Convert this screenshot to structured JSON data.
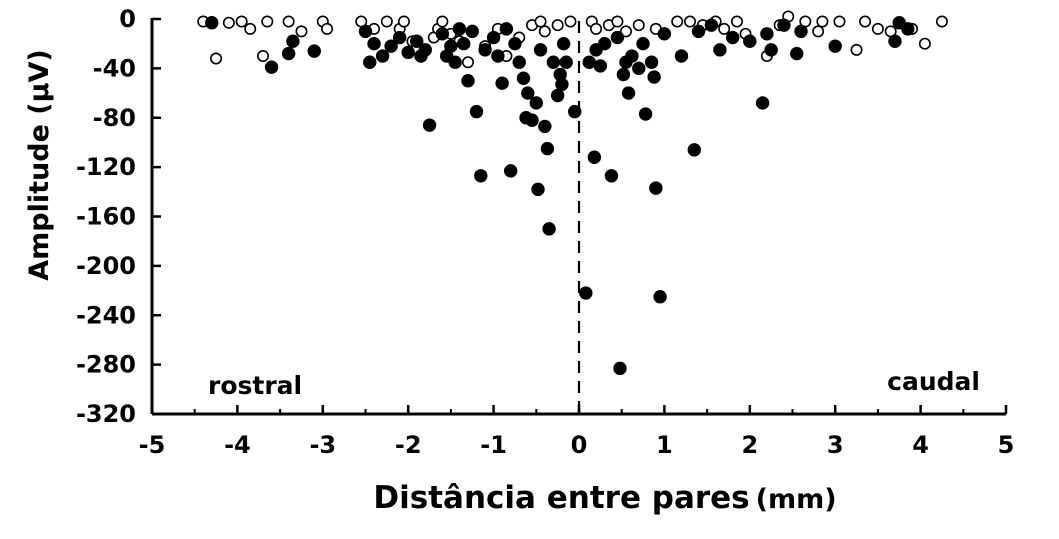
{
  "chart_data": {
    "type": "scatter",
    "xlabel": "Distância entre pares",
    "xlabel_unit": "(mm)",
    "ylabel": "Amplitude (µV)",
    "xlim": [
      -5,
      5
    ],
    "ylim": [
      -320,
      0
    ],
    "x_ticks": [
      "-5",
      "-4",
      "-3",
      "-2",
      "-1",
      "0",
      "1",
      "2",
      "3",
      "4",
      "5"
    ],
    "y_ticks": [
      "0",
      "-40",
      "-80",
      "-120",
      "-160",
      "-200",
      "-240",
      "-280",
      "-320"
    ],
    "annotations": {
      "left": "rostral",
      "right": "caudal"
    },
    "reference_line_x": 0,
    "grid": false,
    "series": [
      {
        "marker": "filled-circle",
        "points": [
          [
            -4.3,
            -3
          ],
          [
            -3.6,
            -39
          ],
          [
            -3.4,
            -28
          ],
          [
            -3.35,
            -18
          ],
          [
            -3.1,
            -26
          ],
          [
            -2.5,
            -10
          ],
          [
            -2.45,
            -35
          ],
          [
            -2.4,
            -20
          ],
          [
            -2.3,
            -30
          ],
          [
            -2.2,
            -22
          ],
          [
            -2.1,
            -15
          ],
          [
            -2.0,
            -27
          ],
          [
            -1.9,
            -18
          ],
          [
            -1.85,
            -30
          ],
          [
            -1.8,
            -25
          ],
          [
            -1.75,
            -86
          ],
          [
            -1.6,
            -12
          ],
          [
            -1.55,
            -30
          ],
          [
            -1.5,
            -22
          ],
          [
            -1.45,
            -35
          ],
          [
            -1.4,
            -8
          ],
          [
            -1.35,
            -20
          ],
          [
            -1.3,
            -50
          ],
          [
            -1.25,
            -10
          ],
          [
            -1.2,
            -75
          ],
          [
            -1.15,
            -127
          ],
          [
            -1.1,
            -25
          ],
          [
            -1.0,
            -15
          ],
          [
            -0.95,
            -30
          ],
          [
            -0.9,
            -52
          ],
          [
            -0.85,
            -8
          ],
          [
            -0.8,
            -123
          ],
          [
            -0.75,
            -20
          ],
          [
            -0.7,
            -35
          ],
          [
            -0.65,
            -48
          ],
          [
            -0.62,
            -80
          ],
          [
            -0.6,
            -60
          ],
          [
            -0.55,
            -82
          ],
          [
            -0.5,
            -68
          ],
          [
            -0.48,
            -138
          ],
          [
            -0.45,
            -25
          ],
          [
            -0.4,
            -87
          ],
          [
            -0.37,
            -105
          ],
          [
            -0.35,
            -170
          ],
          [
            -0.3,
            -35
          ],
          [
            -0.25,
            -62
          ],
          [
            -0.22,
            -45
          ],
          [
            -0.2,
            -53
          ],
          [
            -0.18,
            -20
          ],
          [
            -0.15,
            -35
          ],
          [
            -0.05,
            -75
          ],
          [
            0.08,
            -222
          ],
          [
            0.12,
            -35
          ],
          [
            0.18,
            -112
          ],
          [
            0.2,
            -25
          ],
          [
            0.25,
            -38
          ],
          [
            0.3,
            -20
          ],
          [
            0.38,
            -127
          ],
          [
            0.45,
            -15
          ],
          [
            0.48,
            -283
          ],
          [
            0.52,
            -45
          ],
          [
            0.55,
            -35
          ],
          [
            0.58,
            -60
          ],
          [
            0.62,
            -30
          ],
          [
            0.7,
            -40
          ],
          [
            0.75,
            -20
          ],
          [
            0.78,
            -77
          ],
          [
            0.85,
            -35
          ],
          [
            0.88,
            -47
          ],
          [
            0.9,
            -137
          ],
          [
            0.95,
            -225
          ],
          [
            1.0,
            -12
          ],
          [
            1.2,
            -30
          ],
          [
            1.35,
            -106
          ],
          [
            1.4,
            -10
          ],
          [
            1.55,
            -5
          ],
          [
            1.65,
            -25
          ],
          [
            1.8,
            -15
          ],
          [
            2.0,
            -18
          ],
          [
            2.15,
            -68
          ],
          [
            2.2,
            -12
          ],
          [
            2.25,
            -25
          ],
          [
            2.4,
            -5
          ],
          [
            2.55,
            -28
          ],
          [
            2.6,
            -10
          ],
          [
            3.0,
            -22
          ],
          [
            3.7,
            -18
          ],
          [
            3.75,
            -3
          ],
          [
            3.85,
            -8
          ]
        ]
      },
      {
        "marker": "open-circle",
        "points": [
          [
            -4.4,
            -2
          ],
          [
            -4.25,
            -32
          ],
          [
            -4.1,
            -3
          ],
          [
            -3.95,
            -2
          ],
          [
            -3.85,
            -8
          ],
          [
            -3.7,
            -30
          ],
          [
            -3.65,
            -2
          ],
          [
            -3.4,
            -2
          ],
          [
            -3.25,
            -10
          ],
          [
            -3.0,
            -2
          ],
          [
            -2.95,
            -8
          ],
          [
            -2.55,
            -2
          ],
          [
            -2.4,
            -8
          ],
          [
            -2.25,
            -2
          ],
          [
            -2.1,
            -8
          ],
          [
            -2.05,
            -2
          ],
          [
            -1.95,
            -18
          ],
          [
            -1.8,
            -25
          ],
          [
            -1.7,
            -15
          ],
          [
            -1.65,
            -8
          ],
          [
            -1.6,
            -2
          ],
          [
            -1.5,
            -12
          ],
          [
            -1.4,
            -18
          ],
          [
            -1.3,
            -35
          ],
          [
            -1.1,
            -22
          ],
          [
            -0.95,
            -8
          ],
          [
            -0.85,
            -30
          ],
          [
            -0.7,
            -15
          ],
          [
            -0.55,
            -5
          ],
          [
            -0.45,
            -2
          ],
          [
            -0.4,
            -10
          ],
          [
            -0.25,
            -5
          ],
          [
            -0.1,
            -2
          ],
          [
            0.15,
            -2
          ],
          [
            0.2,
            -8
          ],
          [
            0.35,
            -5
          ],
          [
            0.45,
            -2
          ],
          [
            0.55,
            -10
          ],
          [
            0.7,
            -5
          ],
          [
            0.9,
            -8
          ],
          [
            1.15,
            -2
          ],
          [
            1.3,
            -2
          ],
          [
            1.45,
            -5
          ],
          [
            1.6,
            -2
          ],
          [
            1.7,
            -8
          ],
          [
            1.85,
            -2
          ],
          [
            1.95,
            -12
          ],
          [
            2.2,
            -30
          ],
          [
            2.35,
            -5
          ],
          [
            2.45,
            2
          ],
          [
            2.65,
            -2
          ],
          [
            2.8,
            -10
          ],
          [
            2.85,
            -2
          ],
          [
            3.05,
            -2
          ],
          [
            3.25,
            -25
          ],
          [
            3.35,
            -2
          ],
          [
            3.5,
            -8
          ],
          [
            3.65,
            -10
          ],
          [
            3.9,
            -8
          ],
          [
            4.05,
            -20
          ],
          [
            4.25,
            -2
          ]
        ]
      }
    ]
  }
}
